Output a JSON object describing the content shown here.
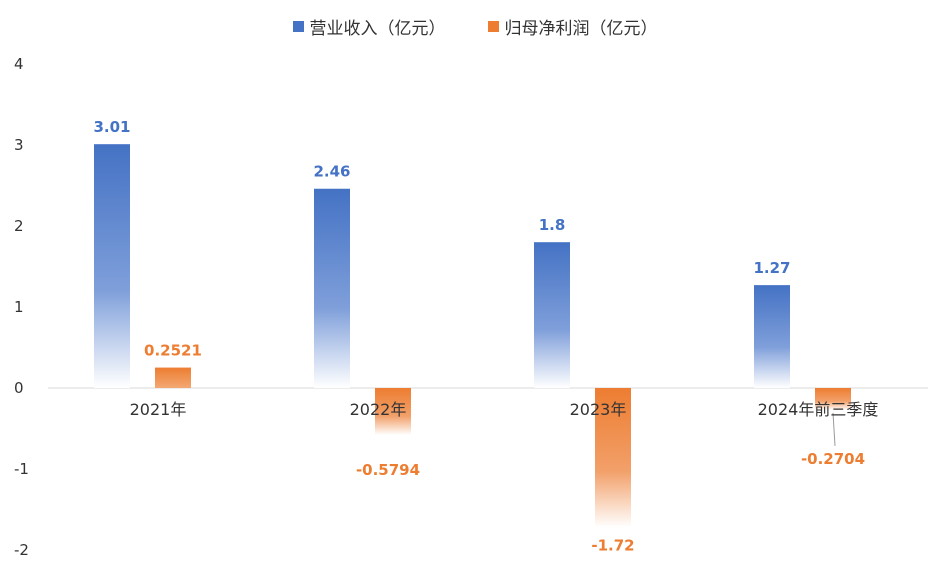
{
  "chart_data": {
    "type": "bar",
    "categories": [
      "2021年",
      "2022年",
      "2023年",
      "2024年前三季度"
    ],
    "series": [
      {
        "name": "营业收入（亿元）",
        "values": [
          3.01,
          2.46,
          1.8,
          1.27
        ],
        "labels": [
          "3.01",
          "2.46",
          "1.8",
          "1.27"
        ],
        "color": "#4472C4"
      },
      {
        "name": "归母净利润（亿元）",
        "values": [
          0.2521,
          -0.5794,
          -1.72,
          -0.2704
        ],
        "labels": [
          "0.2521",
          "-0.5794",
          "-1.72",
          "-0.2704"
        ],
        "color": "#ED7D31"
      }
    ],
    "ylim": [
      -2,
      4
    ],
    "yticks": [
      "-2",
      "-1",
      "0",
      "1",
      "2",
      "3",
      "4"
    ],
    "title": "",
    "xlabel": "",
    "ylabel": "",
    "grid": false,
    "legend_position": "top"
  }
}
